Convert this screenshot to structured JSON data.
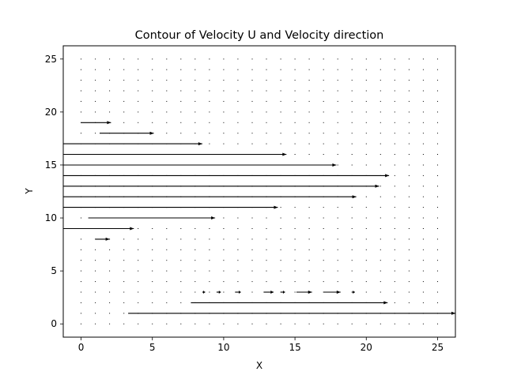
{
  "chart_data": {
    "type": "quiver",
    "title": "Contour of Velocity U and Velocity direction",
    "xlabel": "X",
    "ylabel": "Y",
    "xlim": [
      -1.25,
      26.25
    ],
    "ylim": [
      -1.25,
      26.25
    ],
    "xticks": [
      0,
      5,
      10,
      15,
      20,
      25
    ],
    "yticks": [
      0,
      5,
      10,
      15,
      20,
      25
    ],
    "grid": false,
    "legend": "none",
    "colors": {
      "arrow": "#000000",
      "frame": "#000000",
      "background": "#ffffff"
    },
    "grid_points": {
      "x": [
        0,
        1,
        2,
        3,
        4,
        5,
        6,
        7,
        8,
        9,
        10,
        11,
        12,
        13,
        14,
        15,
        16,
        17,
        18,
        19,
        20,
        21,
        22,
        23,
        24,
        25
      ],
      "y": [
        0,
        1,
        2,
        3,
        4,
        5,
        6,
        7,
        8,
        9,
        10,
        11,
        12,
        13,
        14,
        15,
        16,
        17,
        18,
        19,
        20,
        21,
        22,
        23,
        24,
        25
      ]
    },
    "arrows": [
      {
        "x_start": 0,
        "x_end": 2.1,
        "y": 19
      },
      {
        "x_start": 1.3,
        "x_end": 5.1,
        "y": 18
      },
      {
        "x_start": -1.25,
        "x_end": 8.5,
        "y": 17
      },
      {
        "x_start": -1.25,
        "x_end": 14.4,
        "y": 16
      },
      {
        "x_start": -1.25,
        "x_end": 17.9,
        "y": 15
      },
      {
        "x_start": -1.25,
        "x_end": 21.6,
        "y": 14
      },
      {
        "x_start": -1.25,
        "x_end": 20.9,
        "y": 13
      },
      {
        "x_start": -1.25,
        "x_end": 19.3,
        "y": 12
      },
      {
        "x_start": -1.25,
        "x_end": 13.8,
        "y": 11
      },
      {
        "x_start": 0.5,
        "x_end": 9.4,
        "y": 10
      },
      {
        "x_start": -1.25,
        "x_end": 3.7,
        "y": 9
      },
      {
        "x_start": 1,
        "x_end": 2,
        "y": 8
      },
      {
        "x_start": 8.5,
        "x_end": 8.7,
        "y": 3
      },
      {
        "x_start": 9.5,
        "x_end": 9.8,
        "y": 3
      },
      {
        "x_start": 10.8,
        "x_end": 11.2,
        "y": 3
      },
      {
        "x_start": 12.8,
        "x_end": 13.5,
        "y": 3
      },
      {
        "x_start": 14.0,
        "x_end": 14.3,
        "y": 3
      },
      {
        "x_start": 15.1,
        "x_end": 16.2,
        "y": 3
      },
      {
        "x_start": 17.0,
        "x_end": 18.2,
        "y": 3
      },
      {
        "x_start": 19.0,
        "x_end": 19.2,
        "y": 3
      },
      {
        "x_start": 7.7,
        "x_end": 21.5,
        "y": 2
      },
      {
        "x_start": 3.3,
        "x_end": 26.25,
        "y": 1
      }
    ]
  }
}
